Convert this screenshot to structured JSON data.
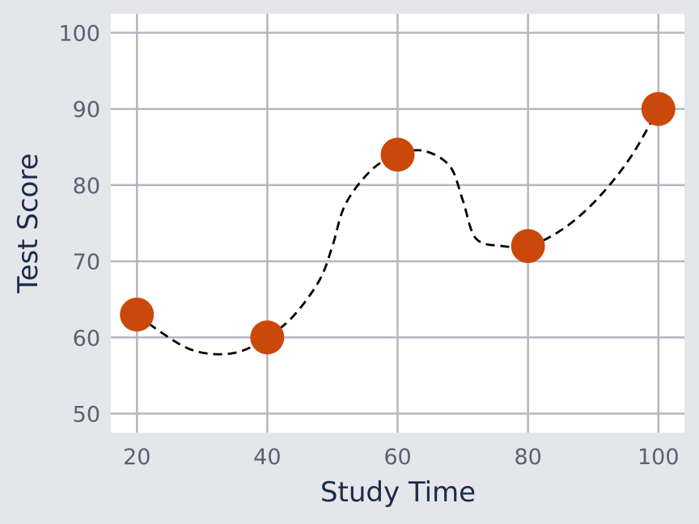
{
  "chart_data": {
    "type": "scatter",
    "title": "",
    "xlabel": "Study Time",
    "ylabel": "Test Score",
    "xlim": [
      16,
      104
    ],
    "ylim": [
      47.5,
      102.5
    ],
    "xticks": [
      20,
      40,
      60,
      80,
      100
    ],
    "yticks": [
      50,
      60,
      70,
      80,
      90,
      100
    ],
    "xtick_labels": [
      "20",
      "40",
      "60",
      "80",
      "100"
    ],
    "ytick_labels": [
      "50",
      "60",
      "70",
      "80",
      "90",
      "100"
    ],
    "grid": true,
    "legend": "none",
    "series": [
      {
        "type": "scatter",
        "x": [
          20,
          40,
          60,
          80,
          100
        ],
        "y": [
          63,
          60,
          84,
          72,
          90
        ]
      },
      {
        "type": "line",
        "style": "dashed",
        "x": [
          20,
          24,
          28,
          32,
          36,
          40,
          44,
          48,
          50,
          52,
          56,
          60,
          64,
          68,
          70,
          72,
          76,
          80,
          84,
          88,
          92,
          96,
          100
        ],
        "y": [
          63,
          60.5,
          58.5,
          57.8,
          58.2,
          60,
          62.8,
          67.5,
          72,
          77.5,
          82,
          84,
          84.5,
          82.5,
          78,
          73,
          72,
          72,
          73.5,
          76,
          79.5,
          84,
          90
        ]
      }
    ]
  },
  "colors": {
    "background": "#e5e6ea",
    "plot_background": "#ffffff",
    "grid": "#b3b7c0",
    "marker": "#c9480a",
    "line": "#000000",
    "tick_text": "#5a6172",
    "axis_title": "#1c2a4a"
  }
}
